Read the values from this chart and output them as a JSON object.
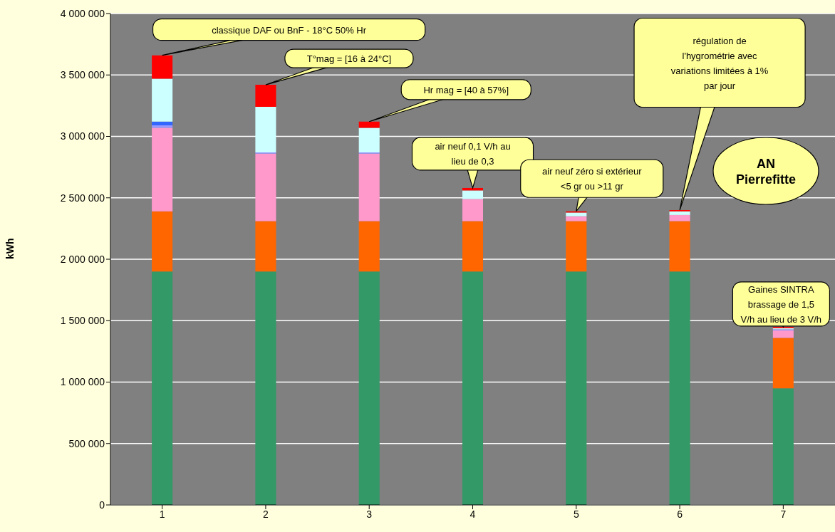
{
  "chart_data": {
    "type": "bar",
    "stacked": true,
    "ylabel": "kWh",
    "categories": [
      "1",
      "2",
      "3",
      "4",
      "5",
      "6",
      "7"
    ],
    "series": [
      {
        "color": "#339966",
        "values": [
          1900000,
          1900000,
          1900000,
          1900000,
          1900000,
          1900000,
          950000
        ]
      },
      {
        "color": "#ff6600",
        "values": [
          490000,
          410000,
          410000,
          410000,
          410000,
          410000,
          410000
        ]
      },
      {
        "color": "#ff99cc",
        "values": [
          680000,
          550000,
          550000,
          180000,
          40000,
          50000,
          60000
        ]
      },
      {
        "color": "#9999ff",
        "values": [
          20000,
          10000,
          10000,
          null,
          null,
          null,
          10000
        ]
      },
      {
        "color": "#3366ff",
        "values": [
          30000,
          null,
          null,
          null,
          null,
          null,
          null
        ]
      },
      {
        "color": "#ccffff",
        "values": [
          350000,
          370000,
          200000,
          70000,
          30000,
          30000,
          10000
        ]
      },
      {
        "color": "#ff0000",
        "values": [
          190000,
          180000,
          50000,
          20000,
          10000,
          10000,
          10000
        ]
      }
    ],
    "ylim": [
      0,
      4000000
    ],
    "yticks": [
      0,
      500000,
      1000000,
      1500000,
      2000000,
      2500000,
      3000000,
      3500000,
      4000000
    ],
    "grid": "y",
    "legend": false,
    "annotations": [
      {
        "text": "classique DAF ou BnF - 18°C 50% Hr",
        "x": "1",
        "y": 3660000
      },
      {
        "text": "T°mag = [16 à 24°C]",
        "x": "2",
        "y": 3420000
      },
      {
        "text": "Hr mag = [40 à 57%]",
        "x": "3",
        "y": 3120000
      },
      {
        "text": "air neuf 0,1 V/h au\nlieu de 0,3",
        "x": "4",
        "y": 2580000
      },
      {
        "text": "air neuf zéro si extérieur\n<5 gr ou >11 gr",
        "x": "5",
        "y": 2390000
      },
      {
        "text": "régulation de\nl'hygrométrie avec\nvariations limitées à 1%\npar jour",
        "x": "6",
        "y": 2400000
      },
      {
        "text": "Gaines SINTRA\nbrassage de 1,5\nV/h au lieu de 3 V/h",
        "x": "7",
        "y": 1450000
      },
      "AN\nPierrefitte"
    ]
  }
}
